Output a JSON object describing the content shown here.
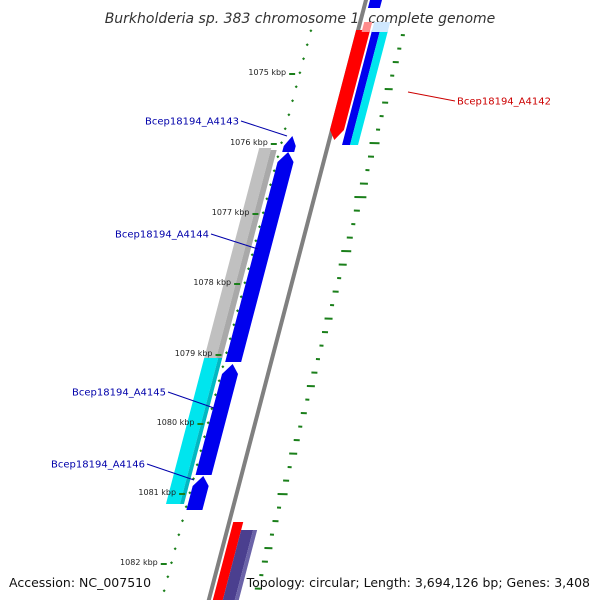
{
  "title": "Burkholderia sp. 383 chromosome 1, complete genome",
  "footer": {
    "accession": "Accession: NC_007510",
    "summary": "Topology: circular; Length: 3,694,126 bp; Genes: 3,408"
  },
  "ticks": [
    {
      "label": "1075 kbp",
      "kbp": 1075
    },
    {
      "label": "1076 kbp",
      "kbp": 1076
    },
    {
      "label": "1077 kbp",
      "kbp": 1077
    },
    {
      "label": "1078 kbp",
      "kbp": 1078
    },
    {
      "label": "1079 kbp",
      "kbp": 1079
    },
    {
      "label": "1080 kbp",
      "kbp": 1080
    },
    {
      "label": "1081 kbp",
      "kbp": 1081
    },
    {
      "label": "1082 kbp",
      "kbp": 1082
    }
  ],
  "genes": [
    {
      "label": "Bcep18194_A4142",
      "strand": "forward",
      "color": "#cc0000"
    },
    {
      "label": "Bcep18194_A4143",
      "strand": "reverse",
      "color": "#0000aa"
    },
    {
      "label": "Bcep18194_A4144",
      "strand": "reverse",
      "color": "#0000aa"
    },
    {
      "label": "Bcep18194_A4145",
      "strand": "reverse",
      "color": "#0000aa"
    },
    {
      "label": "Bcep18194_A4146",
      "strand": "reverse",
      "color": "#0000aa"
    }
  ],
  "colors": {
    "cds_forward": "#ff0000",
    "cds_reverse": "#0000ee",
    "cds_other": "#4b3f8f",
    "backbone": "#808080",
    "gc_positive": "#00e5ee",
    "gc_negative": "#c0c0c0",
    "skew": "#1a7f1a"
  }
}
